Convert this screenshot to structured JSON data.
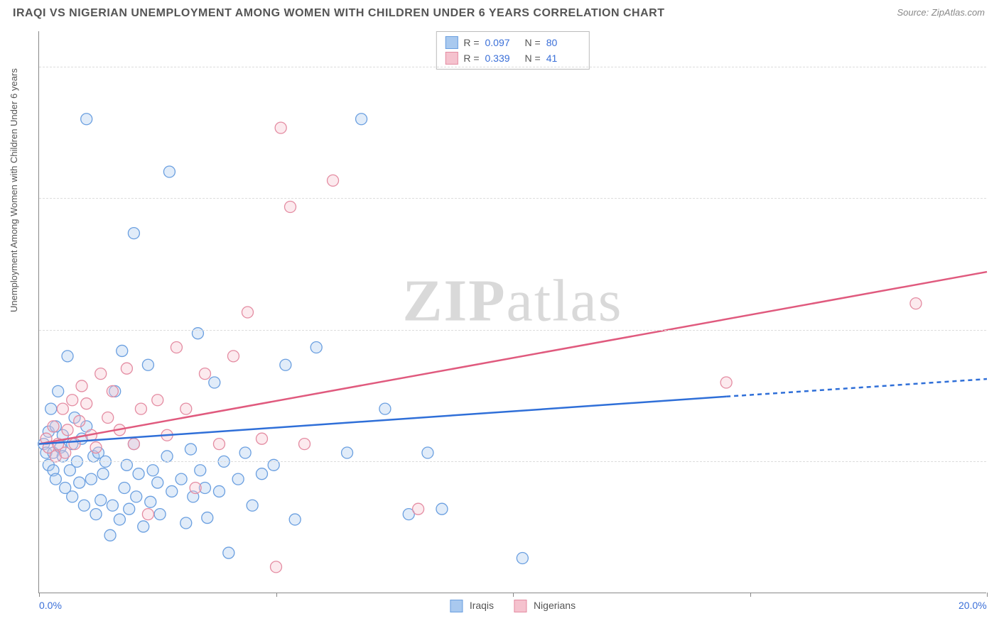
{
  "header": {
    "title": "IRAQI VS NIGERIAN UNEMPLOYMENT AMONG WOMEN WITH CHILDREN UNDER 6 YEARS CORRELATION CHART",
    "source": "Source: ZipAtlas.com"
  },
  "chart": {
    "type": "scatter",
    "y_axis_label": "Unemployment Among Women with Children Under 6 years",
    "background_color": "#ffffff",
    "grid_color": "#dcdcdc",
    "axis_color": "#888888",
    "label_color": "#555555",
    "tick_value_color": "#3a6fd8",
    "xlim": [
      0,
      20
    ],
    "ylim": [
      0,
      32
    ],
    "x_ticks": [
      0,
      5,
      10,
      15,
      20
    ],
    "x_tick_labels": [
      "0.0%",
      "",
      "",
      "",
      "20.0%"
    ],
    "y_ticks": [
      7.5,
      15.0,
      22.5,
      30.0
    ],
    "y_tick_labels": [
      "7.5%",
      "15.0%",
      "22.5%",
      "30.0%"
    ],
    "marker_radius": 8,
    "marker_stroke_width": 1.3,
    "marker_fill_opacity": 0.35,
    "watermark_text_a": "ZIP",
    "watermark_text_b": "atlas",
    "series": {
      "iraqis": {
        "label": "Iraqis",
        "color_stroke": "#6a9fe0",
        "color_fill": "#a9c9ef",
        "R": "0.097",
        "N": "80",
        "trend": {
          "x1": 0,
          "y1": 8.5,
          "x2": 14.5,
          "y2": 11.2,
          "x2_dash": 20,
          "y2_dash": 12.2,
          "color": "#2f6fd8",
          "width": 2.5
        },
        "points": [
          [
            0.1,
            8.5
          ],
          [
            0.15,
            8.0
          ],
          [
            0.2,
            9.2
          ],
          [
            0.2,
            7.3
          ],
          [
            0.25,
            10.5
          ],
          [
            0.3,
            8.0
          ],
          [
            0.3,
            7.0
          ],
          [
            0.35,
            9.5
          ],
          [
            0.35,
            6.5
          ],
          [
            0.4,
            11.5
          ],
          [
            0.45,
            8.3
          ],
          [
            0.5,
            7.8
          ],
          [
            0.5,
            9.0
          ],
          [
            0.55,
            6.0
          ],
          [
            0.6,
            13.5
          ],
          [
            0.65,
            7.0
          ],
          [
            0.7,
            8.5
          ],
          [
            0.7,
            5.5
          ],
          [
            0.75,
            10.0
          ],
          [
            0.8,
            7.5
          ],
          [
            0.85,
            6.3
          ],
          [
            0.9,
            8.8
          ],
          [
            0.95,
            5.0
          ],
          [
            1.0,
            9.5
          ],
          [
            1.1,
            6.5
          ],
          [
            1.15,
            7.8
          ],
          [
            1.2,
            4.5
          ],
          [
            1.25,
            8.0
          ],
          [
            1.3,
            5.3
          ],
          [
            1.35,
            6.8
          ],
          [
            1.4,
            7.5
          ],
          [
            1.5,
            3.3
          ],
          [
            1.0,
            27.0
          ],
          [
            1.55,
            5.0
          ],
          [
            1.6,
            11.5
          ],
          [
            1.7,
            4.2
          ],
          [
            1.75,
            13.8
          ],
          [
            1.8,
            6.0
          ],
          [
            1.85,
            7.3
          ],
          [
            1.9,
            4.8
          ],
          [
            2.0,
            8.5
          ],
          [
            2.05,
            5.5
          ],
          [
            2.1,
            6.8
          ],
          [
            2.2,
            3.8
          ],
          [
            2.3,
            13.0
          ],
          [
            2.0,
            20.5
          ],
          [
            2.35,
            5.2
          ],
          [
            2.4,
            7.0
          ],
          [
            2.5,
            6.3
          ],
          [
            2.55,
            4.5
          ],
          [
            2.7,
            7.8
          ],
          [
            2.8,
            5.8
          ],
          [
            2.75,
            24.0
          ],
          [
            3.0,
            6.5
          ],
          [
            3.1,
            4.0
          ],
          [
            3.2,
            8.2
          ],
          [
            3.25,
            5.5
          ],
          [
            3.35,
            14.8
          ],
          [
            3.4,
            7.0
          ],
          [
            3.5,
            6.0
          ],
          [
            3.55,
            4.3
          ],
          [
            3.7,
            12.0
          ],
          [
            3.8,
            5.8
          ],
          [
            3.9,
            7.5
          ],
          [
            4.0,
            2.3
          ],
          [
            4.2,
            6.5
          ],
          [
            4.35,
            8.0
          ],
          [
            4.5,
            5.0
          ],
          [
            4.7,
            6.8
          ],
          [
            4.95,
            7.3
          ],
          [
            5.2,
            13.0
          ],
          [
            5.4,
            4.2
          ],
          [
            5.85,
            14.0
          ],
          [
            6.5,
            8.0
          ],
          [
            6.8,
            27.0
          ],
          [
            7.3,
            10.5
          ],
          [
            7.8,
            4.5
          ],
          [
            8.2,
            8.0
          ],
          [
            8.5,
            4.8
          ],
          [
            10.2,
            2.0
          ]
        ]
      },
      "nigerians": {
        "label": "Nigerians",
        "color_stroke": "#e48ca2",
        "color_fill": "#f5c2ce",
        "R": "0.339",
        "N": "41",
        "trend": {
          "x1": 0,
          "y1": 8.5,
          "x2": 20,
          "y2": 18.3,
          "color": "#e05a7e",
          "width": 2.5
        },
        "points": [
          [
            0.15,
            8.8
          ],
          [
            0.2,
            8.3
          ],
          [
            0.3,
            9.5
          ],
          [
            0.35,
            7.8
          ],
          [
            0.4,
            8.5
          ],
          [
            0.5,
            10.5
          ],
          [
            0.55,
            8.0
          ],
          [
            0.6,
            9.3
          ],
          [
            0.7,
            11.0
          ],
          [
            0.75,
            8.5
          ],
          [
            0.85,
            9.8
          ],
          [
            0.9,
            11.8
          ],
          [
            1.0,
            10.8
          ],
          [
            1.1,
            9.0
          ],
          [
            1.2,
            8.3
          ],
          [
            1.3,
            12.5
          ],
          [
            1.45,
            10.0
          ],
          [
            1.55,
            11.5
          ],
          [
            1.7,
            9.3
          ],
          [
            1.85,
            12.8
          ],
          [
            2.0,
            8.5
          ],
          [
            2.15,
            10.5
          ],
          [
            2.3,
            4.5
          ],
          [
            2.5,
            11.0
          ],
          [
            2.7,
            9.0
          ],
          [
            2.9,
            14.0
          ],
          [
            3.1,
            10.5
          ],
          [
            3.3,
            6.0
          ],
          [
            3.5,
            12.5
          ],
          [
            3.8,
            8.5
          ],
          [
            4.1,
            13.5
          ],
          [
            4.4,
            16.0
          ],
          [
            4.7,
            8.8
          ],
          [
            5.0,
            1.5
          ],
          [
            5.1,
            26.5
          ],
          [
            5.3,
            22.0
          ],
          [
            5.6,
            8.5
          ],
          [
            6.2,
            23.5
          ],
          [
            8.0,
            4.8
          ],
          [
            14.5,
            12.0
          ],
          [
            18.5,
            16.5
          ]
        ]
      }
    },
    "legend_top": {
      "rows": [
        {
          "series": "iraqis",
          "r_label": "R =",
          "n_label": "N ="
        },
        {
          "series": "nigerians",
          "r_label": "R =",
          "n_label": "N ="
        }
      ]
    }
  }
}
